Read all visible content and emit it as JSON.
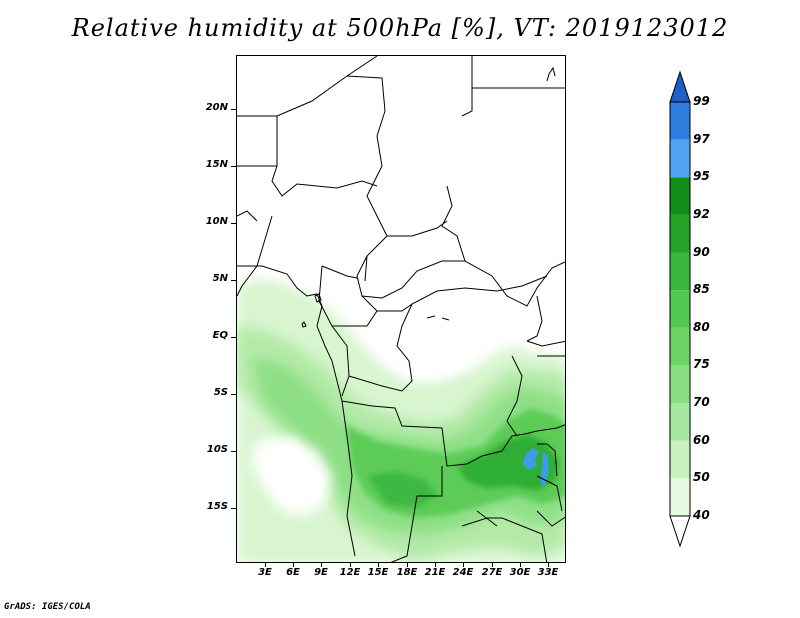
{
  "title": "Relative humidity at 500hPa [%], VT: 2019123012",
  "credit": "GrADS: IGES/COLA",
  "lat_labels": [
    "20N",
    "15N",
    "10N",
    "5N",
    "EQ",
    "5S",
    "10S",
    "15S"
  ],
  "lon_labels": [
    "3E",
    "6E",
    "9E",
    "12E",
    "15E",
    "18E",
    "21E",
    "24E",
    "27E",
    "30E",
    "33E"
  ],
  "colorbar": {
    "labels": [
      "40",
      "50",
      "60",
      "70",
      "75",
      "80",
      "85",
      "90",
      "92",
      "95",
      "97",
      "99"
    ],
    "colors": [
      "#ffffff",
      "#e6fae1",
      "#c8f2c0",
      "#a6e8a0",
      "#8ade82",
      "#6ed466",
      "#52c84e",
      "#38b83a",
      "#22a326",
      "#108c18",
      "#50a4f0",
      "#2e7fe0",
      "#1e5fc8"
    ]
  },
  "legend_colors": {
    "land_outline": "#000000",
    "lake": "#3f9ae8"
  }
}
